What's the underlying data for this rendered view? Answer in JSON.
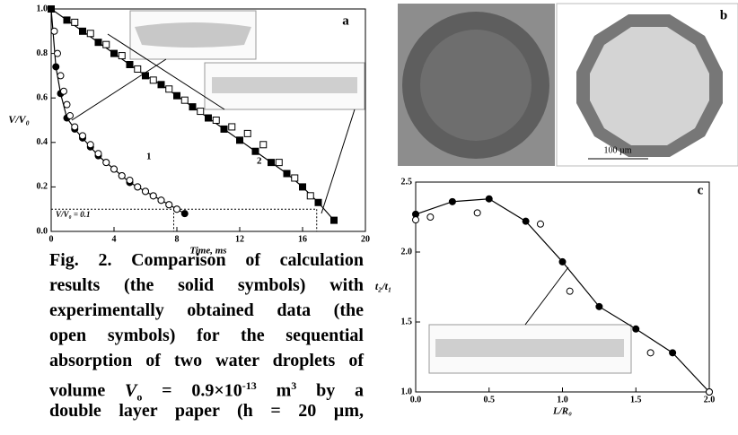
{
  "chart_data": [
    {
      "type": "line",
      "panel": "a",
      "xlabel": "Time, ms",
      "ylabel": "V/V₀",
      "annotations": [
        "1",
        "2",
        "V/V₀ = 0.1"
      ],
      "reference_lines": {
        "y": 0.1,
        "x": [
          7.8,
          16.9
        ]
      },
      "xlim": [
        0,
        20
      ],
      "xticks": [
        0,
        4,
        8,
        12,
        16,
        20
      ],
      "ylim": [
        0,
        1
      ],
      "yticks": [
        {
          "value": 0,
          "label": "0.0"
        },
        0.2,
        0.4,
        0.6,
        0.8,
        {
          "value": 1,
          "label": "1.0"
        }
      ],
      "series": [
        {
          "marker": "filled",
          "shape": "circle",
          "line": true,
          "color": "#000000",
          "x": [
            0,
            0.3,
            0.6,
            1,
            1.5,
            2,
            2.5,
            3,
            3.5,
            4,
            4.5,
            5,
            5.5,
            6,
            6.5,
            7,
            7.5,
            8,
            8.5
          ],
          "values": [
            1.0,
            0.74,
            0.62,
            0.51,
            0.46,
            0.42,
            0.38,
            0.34,
            0.31,
            0.28,
            0.25,
            0.22,
            0.2,
            0.18,
            0.16,
            0.14,
            0.12,
            0.1,
            0.08
          ]
        },
        {
          "marker": "open",
          "shape": "circle",
          "line": false,
          "color": "#000000",
          "x": [
            0.2,
            0.4,
            0.6,
            0.8,
            1,
            1.2,
            1.5,
            2,
            2.5,
            3,
            3.5,
            4,
            4.5,
            5,
            5.5,
            6,
            6.5,
            7,
            7.5,
            8
          ],
          "values": [
            0.9,
            0.8,
            0.7,
            0.63,
            0.57,
            0.52,
            0.47,
            0.43,
            0.39,
            0.35,
            0.31,
            0.28,
            0.25,
            0.23,
            0.2,
            0.18,
            0.16,
            0.14,
            0.12,
            0.1
          ]
        },
        {
          "marker": "filled",
          "shape": "square",
          "line": true,
          "color": "#000000",
          "x": [
            0,
            1,
            2,
            3,
            4,
            5,
            6,
            7,
            8,
            9,
            10,
            11,
            12,
            13,
            14,
            15,
            16,
            17,
            18
          ],
          "values": [
            1.0,
            0.95,
            0.9,
            0.85,
            0.8,
            0.75,
            0.7,
            0.66,
            0.61,
            0.56,
            0.51,
            0.46,
            0.41,
            0.36,
            0.31,
            0.26,
            0.2,
            0.13,
            0.05
          ]
        },
        {
          "marker": "open",
          "shape": "square",
          "line": false,
          "color": "#000000",
          "x": [
            1.5,
            2.5,
            3.5,
            4.5,
            5.5,
            6.5,
            7.5,
            8.5,
            9.5,
            10.5,
            11.5,
            12.5,
            13.5,
            14.5,
            15.5,
            16.5
          ],
          "values": [
            0.94,
            0.89,
            0.84,
            0.79,
            0.73,
            0.68,
            0.64,
            0.59,
            0.54,
            0.5,
            0.47,
            0.44,
            0.39,
            0.31,
            0.24,
            0.16
          ]
        }
      ]
    },
    {
      "type": "line",
      "panel": "c",
      "xlabel": "L/R₀",
      "ylabel": "t₂/t₁",
      "xlim": [
        0,
        2
      ],
      "xticks": [
        {
          "value": 0,
          "label": "0.0"
        },
        0.5,
        {
          "value": 1,
          "label": "1.0"
        },
        1.5,
        {
          "value": 2,
          "label": "2.0"
        }
      ],
      "ylim": [
        1,
        2.5
      ],
      "yticks": [
        {
          "value": 1,
          "label": "1.0"
        },
        1.5,
        {
          "value": 2,
          "label": "2.0"
        },
        2.5
      ],
      "series": [
        {
          "marker": "filled",
          "shape": "circle",
          "line": true,
          "color": "#000000",
          "x": [
            0,
            0.25,
            0.5,
            0.75,
            1.0,
            1.25,
            1.5,
            1.75,
            2.0
          ],
          "values": [
            2.27,
            2.36,
            2.38,
            2.22,
            1.93,
            1.61,
            1.45,
            1.28,
            1.0
          ]
        },
        {
          "marker": "open",
          "shape": "circle",
          "line": false,
          "color": "#000000",
          "x": [
            0,
            0.1,
            0.42,
            0.85,
            1.05,
            1.6,
            2.0
          ],
          "values": [
            2.23,
            2.25,
            2.28,
            2.2,
            1.72,
            1.28,
            1.0
          ]
        }
      ]
    }
  ],
  "panel_b": {
    "label": "b",
    "scale_bar": "100 µm"
  },
  "caption": {
    "lines": [
      "Fig. 2. Comparison of calculation",
      "results (the solid symbols) with",
      "experimentally obtained data (the",
      "open symbols) for the sequential",
      "absorption of two water droplets of"
    ],
    "volume_line": [
      "volume ",
      "V",
      "o",
      " = 0.9×10",
      "-13",
      " m",
      "3",
      " by a"
    ],
    "last_line": "double layer paper (h = 20 µm,"
  }
}
